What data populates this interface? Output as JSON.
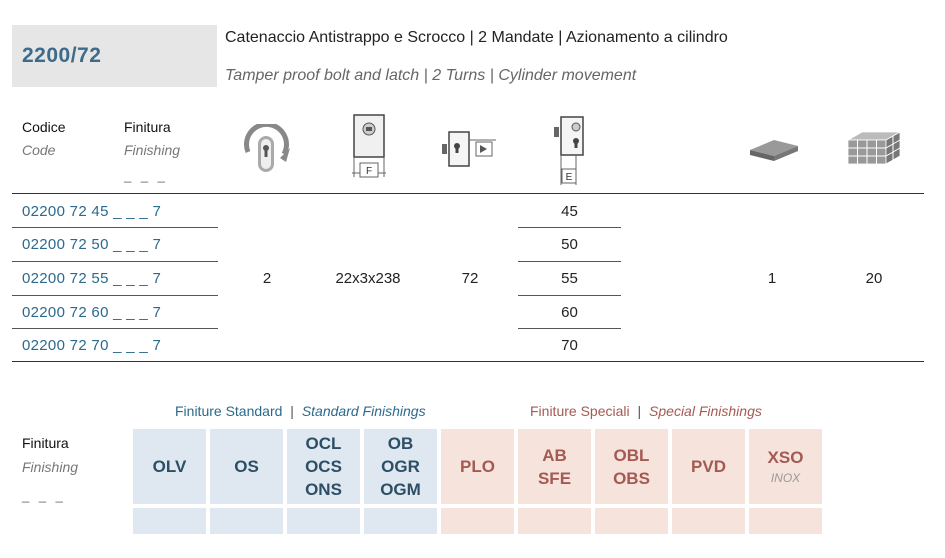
{
  "model": {
    "code": "2200/72",
    "title_it": "Catenaccio Antistrappo e Scrocco | 2 Mandate | Azionamento a cilindro",
    "title_en": "Tamper proof bolt and latch | 2 Turns | Cylinder movement"
  },
  "table": {
    "headers": {
      "code_it": "Codice",
      "code_en": "Code",
      "finish_it": "Finitura",
      "finish_en": "Finishing",
      "finish_dash": "_ _ _",
      "icon_turns": "turns-icon",
      "icon_faceplate": "faceplate-width-icon",
      "icon_lock_depth": "lock-depth-icon",
      "icon_backset": "backset-icon",
      "icon_single_pack": "single-pack-icon",
      "icon_box_pack": "box-pack-icon",
      "label_F": "F",
      "label_E": "E"
    },
    "rows": [
      {
        "code": "02200 72 45 _ _ _ 7",
        "backset": "45"
      },
      {
        "code": "02200 72 50 _ _ _ 7",
        "backset": "50"
      },
      {
        "code": "02200 72 55 _ _ _ 7",
        "backset": "55"
      },
      {
        "code": "02200 72 60 _ _ _ 7",
        "backset": "60"
      },
      {
        "code": "02200 72 70 _ _ _ 7",
        "backset": "70"
      }
    ],
    "shared": {
      "turns": "2",
      "faceplate": "22x3x238",
      "depth": "72",
      "single_pack": "1",
      "box_pack": "20"
    }
  },
  "finishes": {
    "label_it": "Finitura",
    "label_en": "Finishing",
    "label_dash": "_ _ _",
    "standard_title_it": "Finiture Standard",
    "standard_title_en": "Standard Finishings",
    "special_title_it": "Finiture Speciali",
    "special_title_en": "Special Finishings",
    "separator": "|",
    "standard": [
      {
        "lines": [
          "OLV"
        ]
      },
      {
        "lines": [
          "OS"
        ]
      },
      {
        "lines": [
          "OCL",
          "OCS",
          "ONS"
        ]
      },
      {
        "lines": [
          "OB",
          "OGR",
          "OGM"
        ]
      }
    ],
    "special": [
      {
        "lines": [
          "PLO"
        ]
      },
      {
        "lines": [
          "AB",
          "SFE"
        ]
      },
      {
        "lines": [
          "OBL",
          "OBS"
        ]
      },
      {
        "lines": [
          "PVD"
        ]
      },
      {
        "lines": [
          "XSO"
        ],
        "sub": "INOX"
      }
    ],
    "colors": {
      "standard_bg": "#dfe8f0",
      "special_bg": "#f6e3dc"
    }
  }
}
